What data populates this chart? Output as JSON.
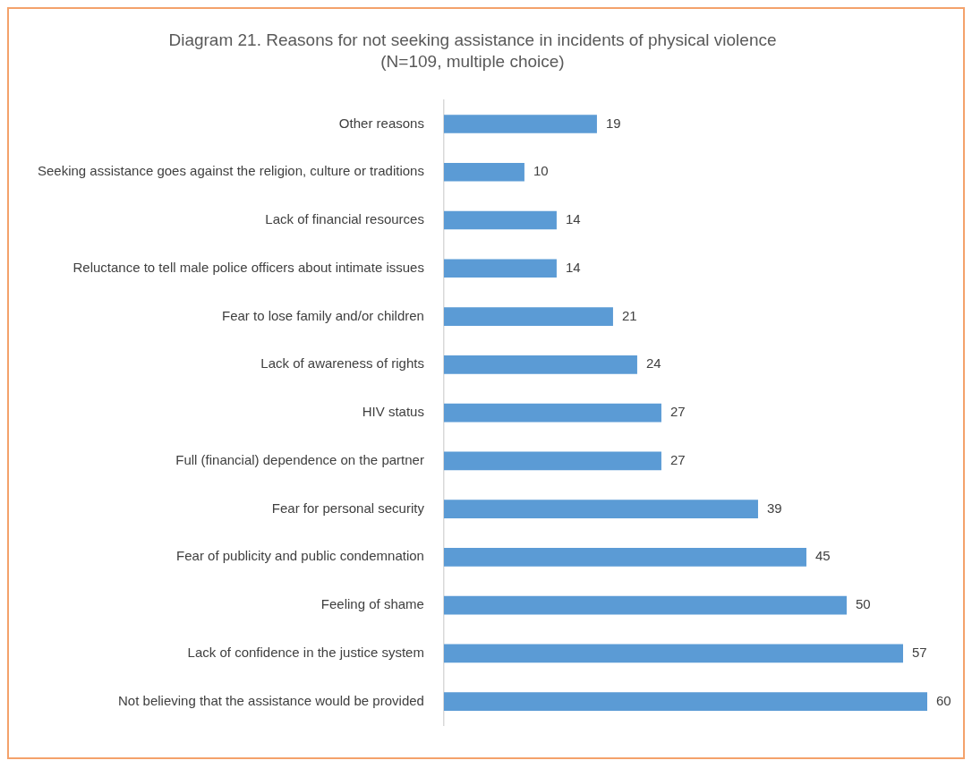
{
  "chart_data": {
    "type": "bar",
    "orientation": "horizontal",
    "title": "Diagram 21. Reasons for not seeking assistance in incidents of physical violence",
    "subtitle": "(N=109, multiple choice)",
    "categories": [
      "Other reasons",
      "Seeking assistance goes against the religion, culture or traditions",
      "Lack of financial resources",
      "Reluctance to tell male police officers about intimate issues",
      "Fear to lose family and/or children",
      "Lack of awareness of rights",
      "HIV status",
      "Full (financial) dependence on the partner",
      "Fear for personal security",
      "Fear of publicity and public condemnation",
      "Feeling of shame",
      "Lack of confidence in the justice system",
      "Not believing that the assistance would be provided"
    ],
    "values": [
      19,
      10,
      14,
      14,
      21,
      24,
      27,
      27,
      39,
      45,
      50,
      57,
      60
    ],
    "color": "#5b9bd5",
    "data_labels": true
  }
}
